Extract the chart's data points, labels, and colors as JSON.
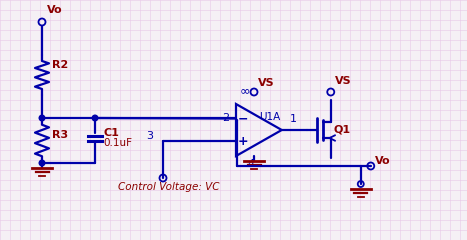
{
  "bg_color": "#f5f0f5",
  "grid_color": "#e8c8e8",
  "wire_color": "#0000AA",
  "label_color": "#8B0000",
  "ground_color": "#8B0000",
  "components": {
    "R2_label": "R2",
    "R3_label": "R3",
    "C1_label": "C1",
    "C1_val": "0.1uF",
    "opamp_label": "U1A",
    "transistor_label": "Q1",
    "vs_label1": "VS",
    "vs_label2": "VS",
    "inf_label": "∞",
    "node2_label": "2",
    "node3_label": "3",
    "node1_label": "1",
    "node4_label": "4",
    "Vo_label1": "Vo",
    "Vo_label2": "Vo",
    "ctrl_label": "Control Voltage: VC"
  }
}
